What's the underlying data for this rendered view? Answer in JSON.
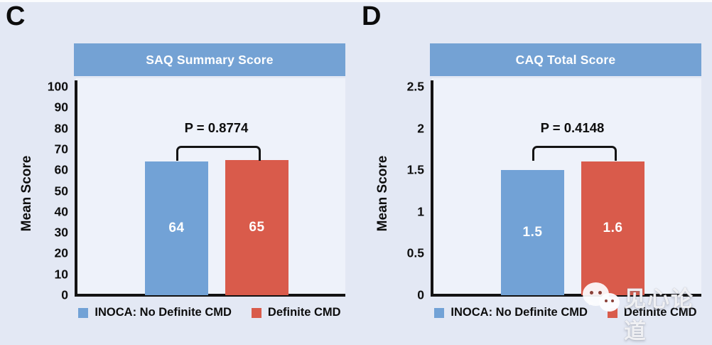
{
  "page": {
    "background": "#e3e8f4",
    "plot_background": "#eef2fa",
    "axis_color": "#131313"
  },
  "colors": {
    "header_blue": "#74a2d4",
    "bar_blue": "#72a2d6",
    "bar_red": "#d95b4b"
  },
  "legend": [
    {
      "label": "INOCA: No Definite CMD",
      "color": "#72a2d6"
    },
    {
      "label": "Definite CMD",
      "color": "#d95b4b"
    }
  ],
  "watermark": {
    "icon": "wechat-icon",
    "text": "见心论道"
  },
  "chart_data": [
    {
      "type": "bar",
      "panel_letter": "C",
      "title": "SAQ Summary Score",
      "ylabel": "Mean Score",
      "ylim": [
        0,
        100
      ],
      "yticks": [
        "0",
        "10",
        "20",
        "30",
        "40",
        "50",
        "60",
        "70",
        "80",
        "90",
        "100"
      ],
      "categories": [
        "INOCA: No Definite CMD",
        "Definite CMD"
      ],
      "values": [
        64,
        65
      ],
      "bar_labels": [
        "64",
        "65"
      ],
      "p_label": "P = 0.8774",
      "grid": false,
      "legend_position": "bottom"
    },
    {
      "type": "bar",
      "panel_letter": "D",
      "title": "CAQ Total Score",
      "ylabel": "Mean Score",
      "ylim": [
        0,
        2.5
      ],
      "yticks": [
        "0",
        "0.5",
        "1",
        "1.5",
        "2",
        "2.5"
      ],
      "categories": [
        "INOCA: No Definite CMD",
        "Definite CMD"
      ],
      "values": [
        1.5,
        1.6
      ],
      "bar_labels": [
        "1.5",
        "1.6"
      ],
      "p_label": "P = 0.4148",
      "grid": false,
      "legend_position": "bottom"
    }
  ]
}
